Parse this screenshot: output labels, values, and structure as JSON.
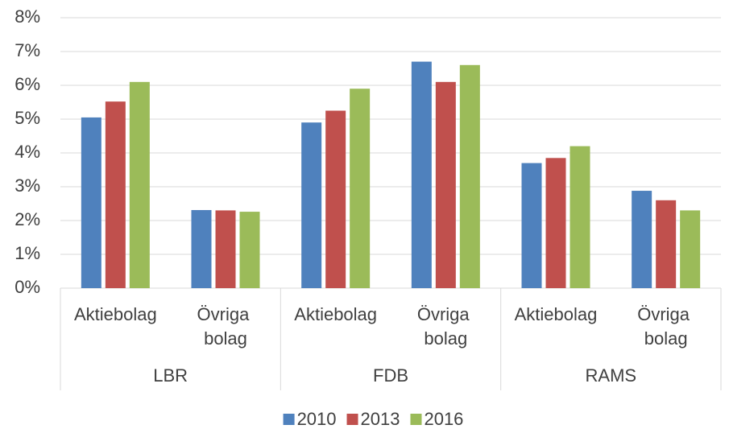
{
  "chart_data": {
    "type": "bar",
    "groups": [
      "LBR",
      "FDB",
      "RAMS"
    ],
    "categories": [
      "Aktiebolag",
      "Övriga bolag",
      "Aktiebolag",
      "Övriga bolag",
      "Aktiebolag",
      "Övriga bolag"
    ],
    "series": [
      {
        "name": "2010",
        "color": "#4f81bd",
        "values": [
          5.05,
          2.31,
          4.9,
          6.7,
          3.7,
          2.88
        ]
      },
      {
        "name": "2013",
        "color": "#c0504d",
        "values": [
          5.52,
          2.3,
          5.25,
          6.1,
          3.85,
          2.6
        ]
      },
      {
        "name": "2016",
        "color": "#9bbb59",
        "values": [
          6.1,
          2.26,
          5.9,
          6.6,
          4.2,
          2.3
        ]
      }
    ],
    "ylim": [
      0,
      8
    ],
    "yticks": [
      {
        "value": 0,
        "label": "0%"
      },
      {
        "value": 1,
        "label": "1%"
      },
      {
        "value": 2,
        "label": "2%"
      },
      {
        "value": 3,
        "label": "3%"
      },
      {
        "value": 4,
        "label": "4%"
      },
      {
        "value": 5,
        "label": "5%"
      },
      {
        "value": 6,
        "label": "6%"
      },
      {
        "value": 7,
        "label": "7%"
      },
      {
        "value": 8,
        "label": "8%"
      }
    ],
    "grid": true,
    "legend": "bottom"
  }
}
